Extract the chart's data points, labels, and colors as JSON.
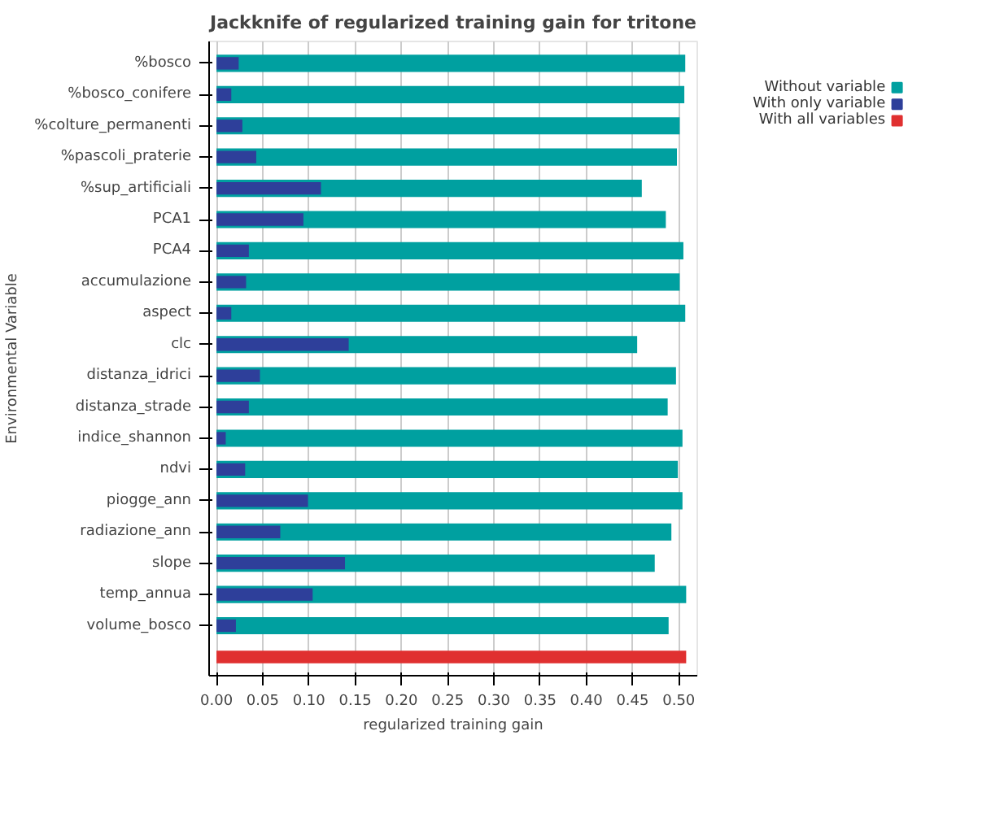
{
  "chart_data": {
    "type": "bar",
    "orientation": "horizontal",
    "title": "Jackknife of regularized training gain for tritone",
    "xlabel": "regularized training gain",
    "ylabel": "Environmental Variable",
    "categories": [
      "%bosco",
      "%bosco_conifere",
      "%colture_permanenti",
      "%pascoli_praterie",
      "%sup_artificiali",
      "PCA1",
      "PCA4",
      "accumulazione",
      "aspect",
      "clc",
      "distanza_idrici",
      "distanza_strade",
      "indice_shannon",
      "ndvi",
      "piogge_ann",
      "radiazione_ann",
      "slope",
      "temp_annua",
      "volume_bosco",
      null
    ],
    "series": [
      {
        "name": "Without variable",
        "color": "#00a0a0",
        "values": [
          0.507,
          0.506,
          0.501,
          0.498,
          0.46,
          0.486,
          0.505,
          0.501,
          0.507,
          0.455,
          0.497,
          0.488,
          0.504,
          0.499,
          0.504,
          0.492,
          0.474,
          0.508,
          0.489,
          null
        ]
      },
      {
        "name": "With only variable",
        "color": "#2e3f9a",
        "values": [
          0.024,
          0.016,
          0.028,
          0.043,
          0.113,
          0.094,
          0.035,
          0.032,
          0.016,
          0.143,
          0.047,
          0.035,
          0.01,
          0.031,
          0.099,
          0.069,
          0.139,
          0.104,
          0.021,
          null
        ]
      },
      {
        "name": "With all variables",
        "color": "#e03030",
        "values": [
          null,
          null,
          null,
          null,
          null,
          null,
          null,
          null,
          null,
          null,
          null,
          null,
          null,
          null,
          null,
          null,
          null,
          null,
          null,
          0.508
        ]
      }
    ],
    "xlim": [
      -0.008,
      0.52
    ],
    "xticks": [
      {
        "value": 0,
        "label": "0.00"
      },
      {
        "value": 0.05,
        "label": "0.05"
      },
      {
        "value": 0.1,
        "label": "0.10"
      },
      {
        "value": 0.15,
        "label": "0.15"
      },
      {
        "value": 0.2,
        "label": "0.20"
      },
      {
        "value": 0.25,
        "label": "0.25"
      },
      {
        "value": 0.3,
        "label": "0.30"
      },
      {
        "value": 0.35,
        "label": "0.35"
      },
      {
        "value": 0.4,
        "label": "0.40"
      },
      {
        "value": 0.45,
        "label": "0.45"
      },
      {
        "value": 0.5,
        "label": "0.50"
      }
    ],
    "grid": "x",
    "legend": "top right"
  }
}
